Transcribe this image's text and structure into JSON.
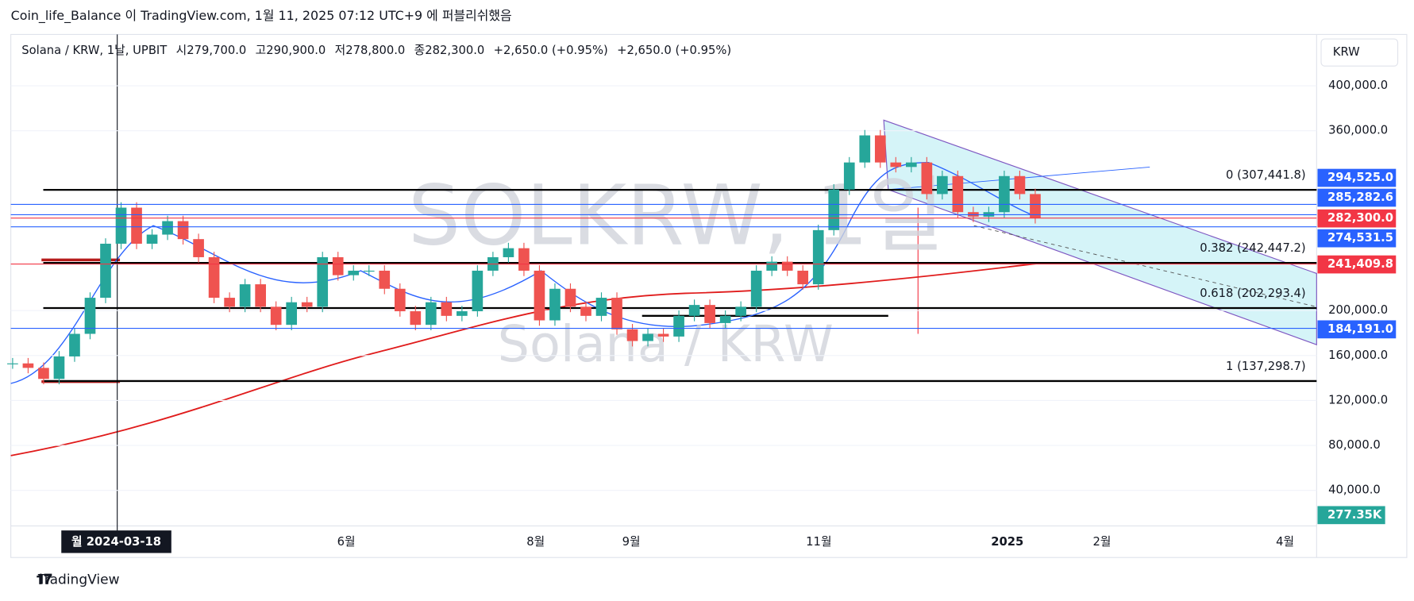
{
  "header": {
    "published": "Coin_life_Balance 이 TradingView.com, 1월 11, 2025 07:12 UTC+9 에 퍼블리쉬했음"
  },
  "legend": {
    "symbol": "Solana / KRW, 1날, UPBIT",
    "open": "시279,700.0",
    "high": "고290,900.0",
    "low": "저278,800.0",
    "close": "종282,300.0",
    "change": "+2,650.0 (+0.95%)",
    "change2": "+2,650.0 (+0.95%)"
  },
  "currency_button": "KRW",
  "watermark": {
    "symbol": "SOLKRW, 1일",
    "name": "Solana / KRW"
  },
  "chart_data": {
    "type": "candlestick",
    "ylim": [
      8350,
      445700
    ],
    "yticks": [
      {
        "value": 400000,
        "label": "400,000.0"
      },
      {
        "value": 360000,
        "label": "360,000.0"
      },
      {
        "value": 200000,
        "label": "200,000.0"
      },
      {
        "value": 160000,
        "label": "160,000.0"
      },
      {
        "value": 120000,
        "label": "120,000.0"
      },
      {
        "value": 80000,
        "label": "80,000.0"
      },
      {
        "value": 40000,
        "label": "40,000.0"
      }
    ],
    "closes": [
      153000,
      149000,
      139200,
      159200,
      179300,
      211400,
      259500,
      291600,
      259500,
      267600,
      279600,
      263600,
      247500,
      211400,
      203400,
      223400,
      203400,
      187300,
      207400,
      203400,
      247500,
      231500,
      235500,
      235500,
      219400,
      199400,
      187300,
      207400,
      195300,
      199400,
      235500,
      247500,
      255500,
      235500,
      191300,
      219400,
      203400,
      195300,
      211400,
      183300,
      172900,
      179300,
      176900,
      195300,
      205000,
      188900,
      195300,
      203400,
      235500,
      243500,
      235500,
      223400,
      271600,
      307700,
      331800,
      355900,
      331800,
      327800,
      331800,
      303700,
      319700,
      287600,
      283600,
      287600,
      319700,
      303700,
      282300
    ],
    "up_color": "#26a69a",
    "down_color": "#ef5350",
    "fib_levels": [
      {
        "value": 307441.8,
        "label": "0 (307,441.8)"
      },
      {
        "value": 242447.2,
        "label": "0.382 (242,447.2)"
      },
      {
        "value": 202293.4,
        "label": "0.618 (202,293.4)"
      },
      {
        "value": 137298.7,
        "label": "1 (137,298.7)"
      }
    ],
    "price_labels": [
      {
        "value": 294525.0,
        "label": "294,525.0",
        "color": "#2962ff"
      },
      {
        "value": 285282.6,
        "label": "285,282.6",
        "color": "#2962ff"
      },
      {
        "value": 282300.0,
        "label": "282,300.0",
        "color": "#f23645"
      },
      {
        "value": 274531.5,
        "label": "274,531.5",
        "color": "#2962ff"
      },
      {
        "value": 241409.8,
        "label": "241,409.8",
        "color": "#f23645"
      },
      {
        "value": 184191.0,
        "label": "184,191.0",
        "color": "#2962ff"
      }
    ],
    "volume_label": "277.35K",
    "x_labels": [
      "월 2024-03-18",
      "6월",
      "8월",
      "9월",
      "11월",
      "2025",
      "2월",
      "4월"
    ]
  },
  "footer": {
    "brand": "TradingView"
  }
}
